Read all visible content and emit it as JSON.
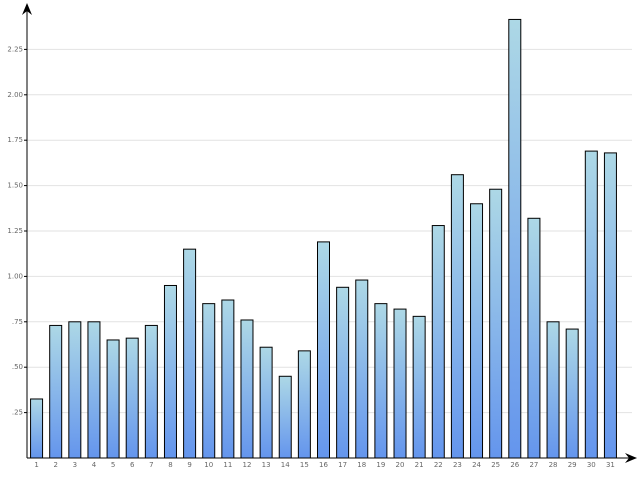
{
  "chart_data": {
    "type": "bar",
    "categories": [
      "1",
      "2",
      "3",
      "4",
      "5",
      "6",
      "7",
      "8",
      "9",
      "10",
      "11",
      "12",
      "13",
      "14",
      "15",
      "16",
      "17",
      "18",
      "19",
      "20",
      "21",
      "22",
      "23",
      "24",
      "25",
      "26",
      "27",
      "28",
      "29",
      "30",
      "31"
    ],
    "values": [
      0.325,
      0.73,
      0.75,
      0.75,
      0.65,
      0.66,
      0.73,
      0.95,
      1.15,
      0.85,
      0.87,
      0.76,
      0.61,
      0.45,
      0.59,
      1.19,
      0.94,
      0.98,
      0.85,
      0.82,
      0.78,
      1.28,
      1.56,
      1.4,
      1.48,
      2.415,
      1.32,
      0.75,
      0.71,
      1.69,
      1.68
    ],
    "color": [
      "#add8e6",
      "#6495ed"
    ],
    "ylim": [
      0,
      2.5
    ],
    "yticks": [
      {
        "value": 0.25,
        "label": ".25"
      },
      {
        "value": 0.5,
        "label": ".50"
      },
      {
        "value": 0.75,
        "label": ".75"
      },
      {
        "value": 1,
        "label": "1.00"
      },
      {
        "value": 1.25,
        "label": "1.25"
      },
      {
        "value": 1.5,
        "label": "1.50"
      },
      {
        "value": 1.75,
        "label": "1.75"
      },
      {
        "value": 2,
        "label": "2.00"
      },
      {
        "value": 2.25,
        "label": "2.25"
      }
    ],
    "grid": true
  }
}
